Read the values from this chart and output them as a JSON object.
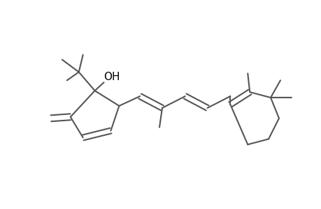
{
  "background_color": "#ffffff",
  "line_color": "#555555",
  "line_width": 1.4,
  "text_color": "#000000",
  "oh_label": "OH",
  "oh_fontsize": 11,
  "figsize": [
    4.6,
    3.0
  ],
  "dpi": 100
}
